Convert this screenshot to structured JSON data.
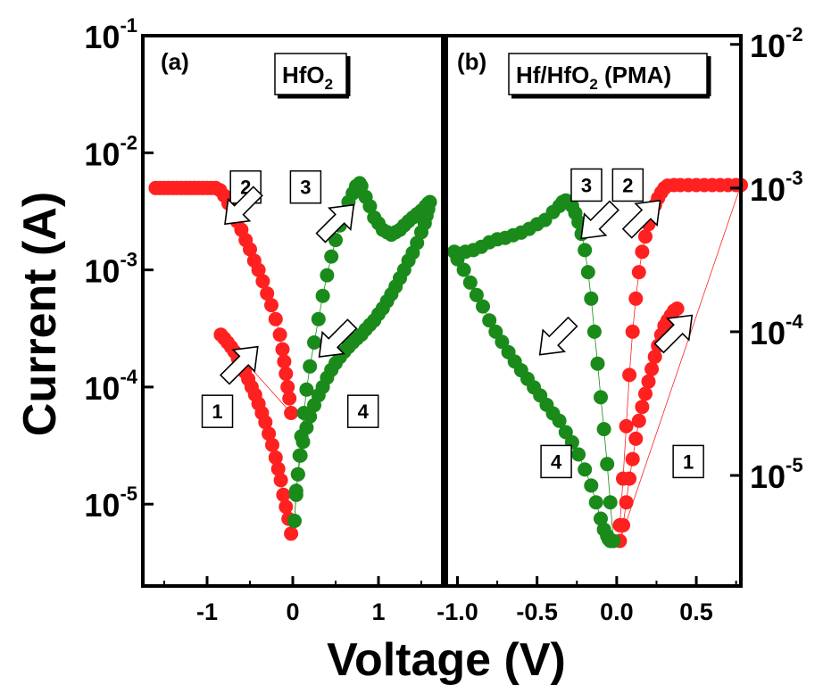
{
  "figure": {
    "xlabel": "Voltage (V)",
    "ylabel": "Current (A)"
  },
  "chart_data": [
    {
      "type": "scatter",
      "panel_label": "(a)",
      "title_base": "HfO",
      "title_sub": "2",
      "title_tail": "",
      "yscale": "log",
      "xlim": [
        -1.75,
        1.75
      ],
      "ylim": [
        2e-06,
        0.1
      ],
      "x_ticks": [
        -1,
        0,
        1
      ],
      "x_tick_labels": [
        "-1",
        "0",
        "1"
      ],
      "y_ticks": [
        0.1,
        0.01,
        0.001,
        0.0001,
        1e-05
      ],
      "y_tick_labels": [
        {
          "base": "10",
          "exp": "-1"
        },
        {
          "base": "10",
          "exp": "-2"
        },
        {
          "base": "10",
          "exp": "-3"
        },
        {
          "base": "10",
          "exp": "-4"
        },
        {
          "base": "10",
          "exp": "-5"
        }
      ],
      "grid": false,
      "series": [
        {
          "color": "#ff2020",
          "x": [
            -1.6,
            -1.55,
            -1.5,
            -1.45,
            -1.4,
            -1.35,
            -1.3,
            -1.25,
            -1.2,
            -1.15,
            -1.1,
            -1.05,
            -1.0,
            -0.95,
            -0.9,
            -0.85,
            -0.8,
            -0.75,
            -0.7,
            -0.65,
            -0.6,
            -0.55,
            -0.5,
            -0.45,
            -0.4,
            -0.35,
            -0.3,
            -0.25,
            -0.2,
            -0.15,
            -0.12,
            -0.1,
            -0.08,
            -0.06,
            -0.04,
            -0.02,
            -0.84,
            -0.8,
            -0.76,
            -0.72,
            -0.68,
            -0.64,
            -0.6,
            -0.56,
            -0.52,
            -0.48,
            -0.44,
            -0.4,
            -0.36,
            -0.32,
            -0.28,
            -0.24,
            -0.2,
            -0.17,
            -0.14,
            -0.11,
            -0.08,
            -0.05,
            -0.02
          ],
          "y": [
            0.005,
            0.005,
            0.005,
            0.005,
            0.005,
            0.005,
            0.005,
            0.005,
            0.005,
            0.005,
            0.005,
            0.005,
            0.005,
            0.005,
            0.005,
            0.0048,
            0.0043,
            0.0037,
            0.0031,
            0.0026,
            0.0022,
            0.0018,
            0.0015,
            0.0012,
            0.001,
            0.0008,
            0.00063,
            0.0005,
            0.00038,
            0.00028,
            0.00021,
            0.000165,
            0.00013,
            0.0001,
            8e-05,
            6e-05,
            0.00028,
            0.00026,
            0.00024,
            0.00022,
            0.0002,
            0.000175,
            0.000155,
            0.000135,
            0.000117,
            0.0001,
            8.6e-05,
            7.2e-05,
            6e-05,
            5e-05,
            4e-05,
            3.2e-05,
            2.5e-05,
            2e-05,
            1.6e-05,
            1.2e-05,
            9.5e-06,
            7.5e-06,
            5.6e-06
          ]
        },
        {
          "color": "#1a8a1a",
          "x": [
            0.02,
            0.04,
            0.06,
            0.08,
            0.1,
            0.13,
            0.16,
            0.2,
            0.25,
            0.3,
            0.35,
            0.4,
            0.45,
            0.5,
            0.55,
            0.6,
            0.65,
            0.7,
            0.74,
            0.78,
            0.8,
            0.85,
            0.9,
            0.95,
            1.0,
            1.05,
            1.1,
            1.15,
            1.2,
            1.25,
            1.3,
            1.35,
            1.4,
            1.45,
            1.5,
            1.55,
            1.58,
            1.6,
            1.58,
            1.56,
            1.54,
            1.5,
            1.45,
            1.4,
            1.35,
            1.3,
            1.25,
            1.2,
            1.15,
            1.1,
            1.05,
            1.0,
            0.95,
            0.9,
            0.85,
            0.8,
            0.75,
            0.7,
            0.65,
            0.6,
            0.55,
            0.5,
            0.45,
            0.4,
            0.35,
            0.3,
            0.25,
            0.2,
            0.16,
            0.12,
            0.09,
            0.06,
            0.04,
            0.02
          ],
          "y": [
            7.2e-06,
            1.2e-05,
            1.8e-05,
            2.6e-05,
            3.8e-05,
            6e-05,
            9.5e-05,
            0.00015,
            0.00024,
            0.00038,
            0.0006,
            0.0009,
            0.0013,
            0.0018,
            0.0024,
            0.0031,
            0.0038,
            0.0045,
            0.0052,
            0.0055,
            0.0052,
            0.0042,
            0.0035,
            0.0028,
            0.0025,
            0.0022,
            0.0021,
            0.002,
            0.0021,
            0.0022,
            0.0024,
            0.0026,
            0.0028,
            0.003,
            0.0032,
            0.0035,
            0.0037,
            0.0038,
            0.0033,
            0.0029,
            0.0025,
            0.0021,
            0.0017,
            0.0014,
            0.0012,
            0.001,
            0.00085,
            0.00072,
            0.00062,
            0.00054,
            0.00047,
            0.00042,
            0.00037,
            0.00034,
            0.00031,
            0.00028,
            0.00026,
            0.00024,
            0.00022,
            0.0002,
            0.00018,
            0.00016,
            0.00014,
            0.00012,
            0.0001,
            8.5e-05,
            7e-05,
            5.6e-05,
            4.5e-05,
            3.4e-05,
            2.6e-05,
            1.8e-05,
            1.3e-05,
            7.2e-06
          ]
        }
      ],
      "legend_boxes": [
        {
          "label": "1",
          "x": -0.88,
          "y": 6.2e-05
        },
        {
          "label": "2",
          "x": -0.55,
          "y": 0.0051
        },
        {
          "label": "3",
          "x": 0.15,
          "y": 0.0051
        },
        {
          "label": "4",
          "x": 0.82,
          "y": 6.2e-05
        }
      ],
      "arrows": [
        {
          "x": -0.6,
          "y": 0.0034,
          "dir": 225
        },
        {
          "x": -0.6,
          "y": 0.00016,
          "dir": 45
        },
        {
          "x": 0.52,
          "y": 0.0026,
          "dir": 45
        },
        {
          "x": 0.5,
          "y": 0.00025,
          "dir": 225
        }
      ]
    },
    {
      "type": "scatter",
      "panel_label": "(b)",
      "title_base": "Hf/HfO",
      "title_sub": "2",
      "title_tail": " (PMA)",
      "yscale": "log",
      "xlim": [
        -1.07,
        0.78
      ],
      "ylim": [
        1.7e-06,
        0.0115
      ],
      "x_ticks": [
        -1.0,
        -0.5,
        0.0,
        0.5
      ],
      "x_tick_labels": [
        "-1.0",
        "-0.5",
        "0.0",
        "0.5"
      ],
      "y_ticks": [
        0.01,
        0.001,
        0.0001,
        1e-05
      ],
      "y_tick_labels": [
        {
          "base": "10",
          "exp": "-2"
        },
        {
          "base": "10",
          "exp": "-3"
        },
        {
          "base": "10",
          "exp": "-4"
        },
        {
          "base": "10",
          "exp": "-5"
        }
      ],
      "grid": false,
      "series": [
        {
          "color": "#ff2020",
          "x": [
            0.02,
            0.04,
            0.06,
            0.08,
            0.1,
            0.12,
            0.14,
            0.16,
            0.18,
            0.2,
            0.22,
            0.24,
            0.26,
            0.28,
            0.3,
            0.32,
            0.36,
            0.4,
            0.45,
            0.5,
            0.55,
            0.6,
            0.65,
            0.7,
            0.75,
            0.78,
            0.02,
            0.04,
            0.06,
            0.08,
            0.1,
            0.12,
            0.14,
            0.16,
            0.18,
            0.2,
            0.22,
            0.24,
            0.26,
            0.28,
            0.3,
            0.32,
            0.34,
            0.36,
            0.38
          ],
          "y": [
            4.5e-06,
            9.5e-06,
            2.2e-05,
            5e-05,
            0.0001,
            0.00017,
            0.00026,
            0.00036,
            0.00046,
            0.00056,
            0.00066,
            0.00076,
            0.00085,
            0.00093,
            0.001,
            0.00104,
            0.00105,
            0.00105,
            0.00105,
            0.00105,
            0.00105,
            0.00105,
            0.00105,
            0.00105,
            0.00105,
            0.00105,
            3.5e-06,
            4.5e-06,
            6.5e-06,
            9.5e-06,
            1.3e-05,
            1.8e-05,
            2.4e-05,
            3e-05,
            3.7e-05,
            4.5e-05,
            5.5e-05,
            6.7e-05,
            8e-05,
            9.5e-05,
            0.00011,
            0.00012,
            0.00013,
            0.00014,
            0.000145
          ]
        },
        {
          "color": "#1a8a1a",
          "x": [
            -0.02,
            -0.04,
            -0.06,
            -0.08,
            -0.1,
            -0.12,
            -0.14,
            -0.16,
            -0.18,
            -0.2,
            -0.22,
            -0.24,
            -0.26,
            -0.28,
            -0.3,
            -0.32,
            -0.34,
            -0.36,
            -0.4,
            -0.45,
            -0.5,
            -0.55,
            -0.6,
            -0.65,
            -0.7,
            -0.75,
            -0.8,
            -0.85,
            -0.9,
            -0.95,
            -1.0,
            -1.02,
            -1.0,
            -0.96,
            -0.92,
            -0.88,
            -0.84,
            -0.8,
            -0.76,
            -0.72,
            -0.68,
            -0.64,
            -0.6,
            -0.56,
            -0.52,
            -0.48,
            -0.44,
            -0.4,
            -0.36,
            -0.32,
            -0.28,
            -0.24,
            -0.2,
            -0.16,
            -0.13,
            -0.1,
            -0.08,
            -0.06,
            -0.05,
            -0.04,
            -0.03
          ],
          "y": [
            3.5e-06,
            6.5e-06,
            1.2e-05,
            2.1e-05,
            3.5e-05,
            6e-05,
            0.0001,
            0.00017,
            0.00026,
            0.00037,
            0.00048,
            0.00058,
            0.00067,
            0.00075,
            0.0008,
            0.00082,
            0.0008,
            0.00075,
            0.00068,
            0.0006,
            0.00056,
            0.00052,
            0.00049,
            0.00047,
            0.00045,
            0.00044,
            0.00042,
            0.00039,
            0.00037,
            0.00036,
            0.00035,
            0.00036,
            0.00032,
            0.00027,
            0.00022,
            0.00018,
            0.00015,
            0.00012,
            0.0001,
            8.5e-05,
            7.2e-05,
            6.2e-05,
            5.4e-05,
            4.7e-05,
            4.1e-05,
            3.6e-05,
            3.1e-05,
            2.7e-05,
            2.4e-05,
            2e-05,
            1.7e-05,
            1.4e-05,
            1.1e-05,
            8.5e-06,
            6.5e-06,
            5e-06,
            4.2e-06,
            3.8e-06,
            3.6e-06,
            3.5e-06,
            3.5e-06
          ]
        }
      ],
      "legend_boxes": [
        {
          "label": "3",
          "x": -0.19,
          "y": 0.00105
        },
        {
          "label": "2",
          "x": 0.07,
          "y": 0.00105
        },
        {
          "label": "4",
          "x": -0.38,
          "y": 1.25e-05
        },
        {
          "label": "1",
          "x": 0.45,
          "y": 1.25e-05
        }
      ],
      "arrows": [
        {
          "x": -0.12,
          "y": 0.00058,
          "dir": 225
        },
        {
          "x": 0.17,
          "y": 0.00063,
          "dir": 45
        },
        {
          "x": -0.38,
          "y": 9e-05,
          "dir": 225
        },
        {
          "x": 0.37,
          "y": 0.0001,
          "dir": 45
        }
      ]
    }
  ]
}
